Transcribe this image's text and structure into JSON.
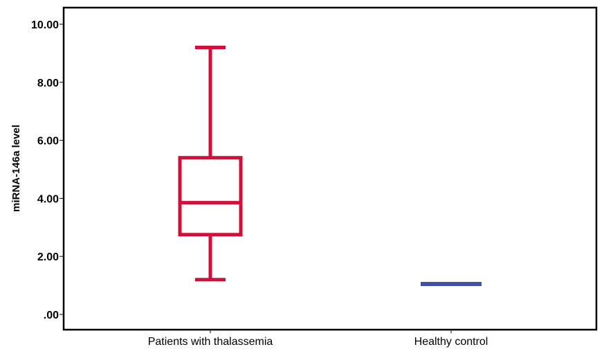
{
  "chart_data": {
    "type": "box",
    "ylabel": "miRNA-146a  level",
    "xlabel": "",
    "ylim": [
      -0.1,
      10.6
    ],
    "yticks": [
      0,
      2,
      4,
      6,
      8,
      10
    ],
    "ytick_labels": [
      ".00",
      "2.00",
      "4.00",
      "6.00",
      "8.00",
      "10.00"
    ],
    "grid": false,
    "categories": [
      "Patients with thalassemia",
      "Healthy control"
    ],
    "boxes": [
      {
        "category": "Patients with thalassemia",
        "min": 1.2,
        "q1": 2.75,
        "median": 3.85,
        "q3": 5.4,
        "max": 9.2,
        "color": "#d0103a"
      },
      {
        "category": "Healthy control",
        "min": 1.05,
        "q1": 1.05,
        "median": 1.05,
        "q3": 1.05,
        "max": 1.05,
        "color": "#3f51a3"
      }
    ]
  }
}
